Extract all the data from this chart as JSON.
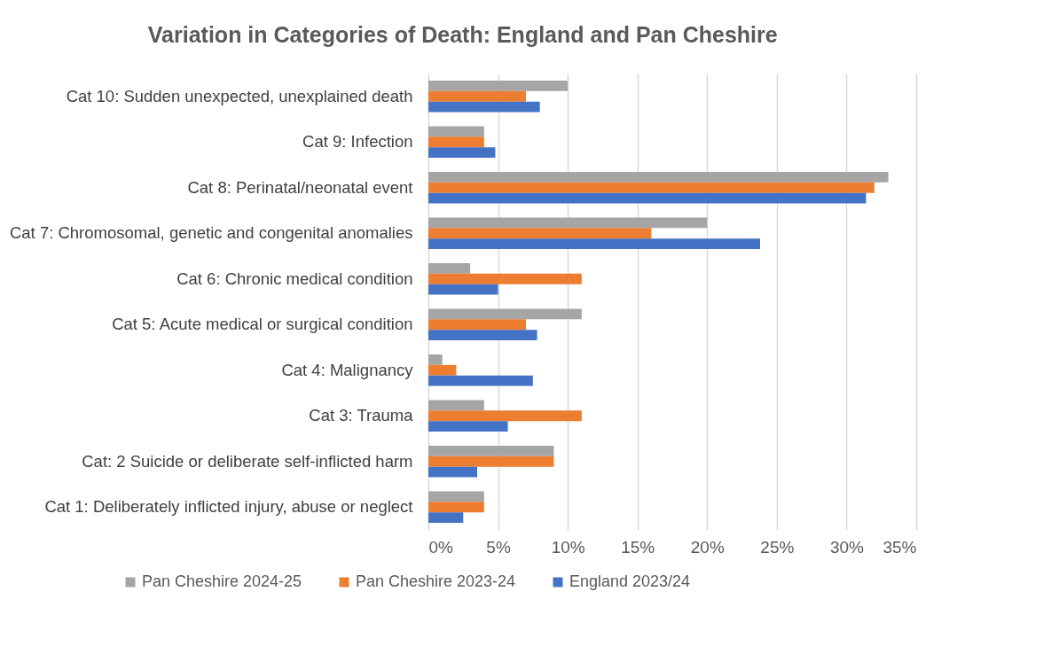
{
  "chart_data": {
    "type": "bar",
    "orientation": "horizontal",
    "title": "Variation in Categories of Death: England and Pan Cheshire",
    "categories": [
      "Cat 10: Sudden unexpected, unexplained death",
      "Cat 9: Infection",
      "Cat 8: Perinatal/neonatal event",
      "Cat 7: Chromosomal, genetic and congenital anomalies",
      "Cat 6: Chronic medical condition",
      "Cat 5: Acute medical or surgical condition",
      "Cat 4: Malignancy",
      "Cat 3: Trauma",
      "Cat: 2 Suicide or deliberate self-inflicted harm",
      "Cat 1: Deliberately inflicted injury, abuse or neglect"
    ],
    "series": [
      {
        "name": "Pan Cheshire 2024-25",
        "color": "#a5a5a5",
        "values": [
          10,
          4,
          33,
          20,
          3,
          11,
          1,
          4,
          9,
          4
        ]
      },
      {
        "name": "Pan Cheshire 2023-24",
        "color": "#ed7d31",
        "values": [
          7,
          4,
          32,
          16,
          11,
          7,
          2,
          11,
          9,
          4
        ]
      },
      {
        "name": "England 2023/24",
        "color": "#4472c4",
        "values": [
          8,
          4.8,
          31.4,
          23.8,
          5,
          7.8,
          7.5,
          5.7,
          3.5,
          2.5
        ]
      }
    ],
    "xlim": [
      0,
      35
    ],
    "xticks": [
      {
        "value": 0,
        "label": "0%"
      },
      {
        "value": 5,
        "label": "5%"
      },
      {
        "value": 10,
        "label": "10%"
      },
      {
        "value": 15,
        "label": "15%"
      },
      {
        "value": 20,
        "label": "20%"
      },
      {
        "value": 25,
        "label": "25%"
      },
      {
        "value": 30,
        "label": "30%"
      },
      {
        "value": 35,
        "label": "35%"
      }
    ],
    "grid": "x",
    "legend": "bottom"
  }
}
